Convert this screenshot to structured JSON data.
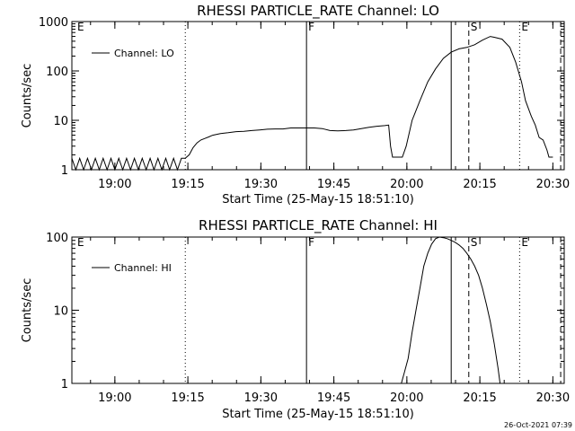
{
  "chart_data": [
    {
      "type": "line",
      "title": "RHESSI PARTICLE_RATE Channel: LO",
      "xlabel": "Start Time (25-May-15 18:51:10)",
      "ylabel": "Counts/sec",
      "y_scale": "log",
      "ylim": [
        1,
        1000
      ],
      "y_ticks": [
        "1",
        "10",
        "100",
        "1000"
      ],
      "xlim": [
        0,
        2460
      ],
      "x_ticks": [
        "19:00",
        "19:15",
        "19:30",
        "19:45",
        "20:00",
        "20:15",
        "20:30"
      ],
      "legend": {
        "placement": "top-left",
        "entries": [
          "Channel: LO"
        ]
      },
      "series": [
        {
          "name": "Channel: LO",
          "points": [
            [
              0,
              1.7
            ],
            [
              20,
              1.0
            ],
            [
              40,
              1.7
            ],
            [
              60,
              1.0
            ],
            [
              80,
              1.7
            ],
            [
              100,
              1.0
            ],
            [
              120,
              1.7
            ],
            [
              140,
              1.0
            ],
            [
              160,
              1.7
            ],
            [
              180,
              1.0
            ],
            [
              200,
              1.7
            ],
            [
              220,
              1.0
            ],
            [
              240,
              1.7
            ],
            [
              260,
              1.0
            ],
            [
              280,
              1.7
            ],
            [
              300,
              1.0
            ],
            [
              320,
              1.7
            ],
            [
              340,
              1.0
            ],
            [
              360,
              1.7
            ],
            [
              380,
              1.0
            ],
            [
              400,
              1.7
            ],
            [
              420,
              1.0
            ],
            [
              440,
              1.7
            ],
            [
              460,
              1.0
            ],
            [
              480,
              1.7
            ],
            [
              500,
              1.0
            ],
            [
              520,
              1.7
            ],
            [
              540,
              1.0
            ],
            [
              560,
              1.7
            ],
            [
              580,
              1.7
            ],
            [
              600,
              2.0
            ],
            [
              620,
              2.8
            ],
            [
              640,
              3.5
            ],
            [
              660,
              4.0
            ],
            [
              680,
              4.3
            ],
            [
              700,
              4.6
            ],
            [
              720,
              5.0
            ],
            [
              760,
              5.4
            ],
            [
              800,
              5.6
            ],
            [
              840,
              5.9
            ],
            [
              880,
              6.0
            ],
            [
              920,
              6.2
            ],
            [
              960,
              6.4
            ],
            [
              1000,
              6.6
            ],
            [
              1040,
              6.7
            ],
            [
              1080,
              6.7
            ],
            [
              1120,
              7.0
            ],
            [
              1160,
              7.0
            ],
            [
              1200,
              7.0
            ],
            [
              1240,
              7.0
            ],
            [
              1280,
              6.8
            ],
            [
              1320,
              6.2
            ],
            [
              1360,
              6.1
            ],
            [
              1400,
              6.2
            ],
            [
              1440,
              6.4
            ],
            [
              1480,
              6.8
            ],
            [
              1520,
              7.2
            ],
            [
              1560,
              7.6
            ],
            [
              1600,
              7.8
            ],
            [
              1620,
              8.0
            ],
            [
              1630,
              3.0
            ],
            [
              1640,
              1.8
            ],
            [
              1690,
              1.8
            ],
            [
              1710,
              3.0
            ],
            [
              1740,
              10
            ],
            [
              1780,
              25
            ],
            [
              1820,
              60
            ],
            [
              1860,
              110
            ],
            [
              1900,
              180
            ],
            [
              1940,
              240
            ],
            [
              1980,
              280
            ],
            [
              2020,
              300
            ],
            [
              2060,
              340
            ],
            [
              2100,
              420
            ],
            [
              2140,
              500
            ],
            [
              2160,
              480
            ],
            [
              2200,
              440
            ],
            [
              2240,
              300
            ],
            [
              2270,
              150
            ],
            [
              2300,
              60
            ],
            [
              2320,
              25
            ],
            [
              2350,
              12
            ],
            [
              2370,
              8
            ],
            [
              2390,
              4.5
            ],
            [
              2410,
              4.0
            ],
            [
              2430,
              2.5
            ],
            [
              2440,
              1.8
            ],
            [
              2460,
              1.8
            ]
          ]
        }
      ],
      "event_markers": [
        {
          "label": "E",
          "x": 0,
          "style": "dotted"
        },
        {
          "label": "",
          "x": 580,
          "style": "dotted"
        },
        {
          "label": "F",
          "x": 1200,
          "style": "solid"
        },
        {
          "label": "",
          "x": 1940,
          "style": "solid"
        },
        {
          "label": "S",
          "x": 2030,
          "style": "dashed"
        },
        {
          "label": "E",
          "x": 2290,
          "style": "dotted"
        },
        {
          "label": "",
          "x": 2500,
          "style": "dashed"
        },
        {
          "label": "",
          "x": 2640,
          "style": "dotted"
        }
      ]
    },
    {
      "type": "line",
      "title": "RHESSI PARTICLE_RATE Channel: HI",
      "xlabel": "Start Time (25-May-15 18:51:10)",
      "ylabel": "Counts/sec",
      "y_scale": "log",
      "ylim": [
        1,
        100
      ],
      "y_ticks": [
        "1",
        "10",
        "100"
      ],
      "xlim": [
        0,
        2460
      ],
      "x_ticks": [
        "19:00",
        "19:15",
        "19:30",
        "19:45",
        "20:00",
        "20:15",
        "20:30"
      ],
      "legend": {
        "placement": "top-left",
        "entries": [
          "Channel: HI"
        ]
      },
      "series": [
        {
          "name": "Channel: HI",
          "points": [
            [
              1685,
              1.0
            ],
            [
              1700,
              1.4
            ],
            [
              1720,
              2.2
            ],
            [
              1740,
              5.0
            ],
            [
              1760,
              10
            ],
            [
              1780,
              20
            ],
            [
              1800,
              40
            ],
            [
              1820,
              60
            ],
            [
              1840,
              80
            ],
            [
              1860,
              95
            ],
            [
              1880,
              100
            ],
            [
              1900,
              98
            ],
            [
              1920,
              95
            ],
            [
              1940,
              90
            ],
            [
              1960,
              85
            ],
            [
              1980,
              78
            ],
            [
              2000,
              70
            ],
            [
              2020,
              60
            ],
            [
              2040,
              50
            ],
            [
              2060,
              40
            ],
            [
              2080,
              30
            ],
            [
              2100,
              20
            ],
            [
              2120,
              12
            ],
            [
              2140,
              7
            ],
            [
              2160,
              3.5
            ],
            [
              2180,
              1.6
            ],
            [
              2190,
              1.0
            ]
          ]
        }
      ],
      "event_markers": [
        {
          "label": "E",
          "x": 0,
          "style": "dotted"
        },
        {
          "label": "",
          "x": 580,
          "style": "dotted"
        },
        {
          "label": "F",
          "x": 1200,
          "style": "solid"
        },
        {
          "label": "",
          "x": 1940,
          "style": "solid"
        },
        {
          "label": "S",
          "x": 2030,
          "style": "dashed"
        },
        {
          "label": "E",
          "x": 2290,
          "style": "dotted"
        },
        {
          "label": "",
          "x": 2500,
          "style": "dashed"
        },
        {
          "label": "",
          "x": 2640,
          "style": "dotted"
        }
      ]
    }
  ],
  "footer": {
    "timestamp": "26-Oct-2021 07:39"
  }
}
